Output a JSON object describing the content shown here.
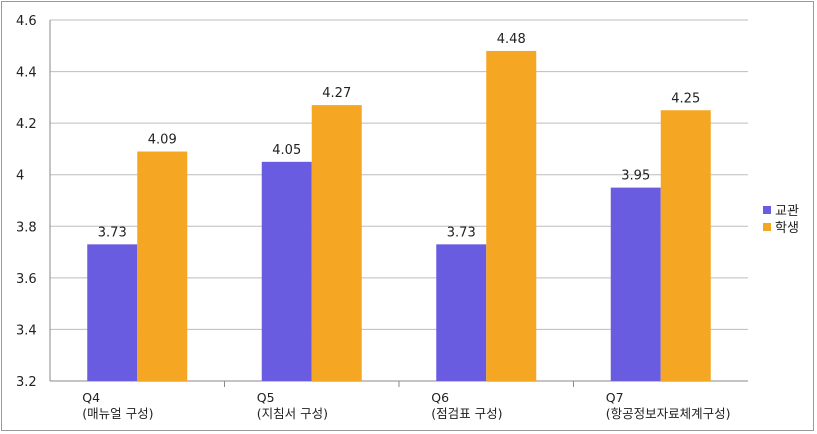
{
  "chart_data": {
    "type": "bar",
    "categories": [
      {
        "code": "Q4",
        "label": "(매뉴얼 구성)"
      },
      {
        "code": "Q5",
        "label": "(지침서 구성)"
      },
      {
        "code": "Q6",
        "label": "(점검표 구성)"
      },
      {
        "code": "Q7",
        "label": "(항공정보자료체계구성)"
      }
    ],
    "series": [
      {
        "name": "교관",
        "color": "#6a5ce0",
        "values": [
          3.73,
          4.05,
          3.73,
          3.95
        ],
        "value_labels": [
          "3.73",
          "4.05",
          "3.73",
          "3.95"
        ]
      },
      {
        "name": "학생",
        "color": "#f5a623",
        "values": [
          4.09,
          4.27,
          4.48,
          4.25
        ],
        "value_labels": [
          "4.09",
          "4.27",
          "4.48",
          "4.25"
        ]
      }
    ],
    "ylim": [
      3.2,
      4.6
    ],
    "yticks": [
      3.2,
      3.4,
      3.6,
      3.8,
      4,
      4.2,
      4.4,
      4.6
    ],
    "ytick_labels": [
      "3.2",
      "3.4",
      "3.6",
      "3.8",
      "4",
      "4.2",
      "4.4",
      "4.6"
    ],
    "grid": true,
    "legend_position": "right"
  }
}
